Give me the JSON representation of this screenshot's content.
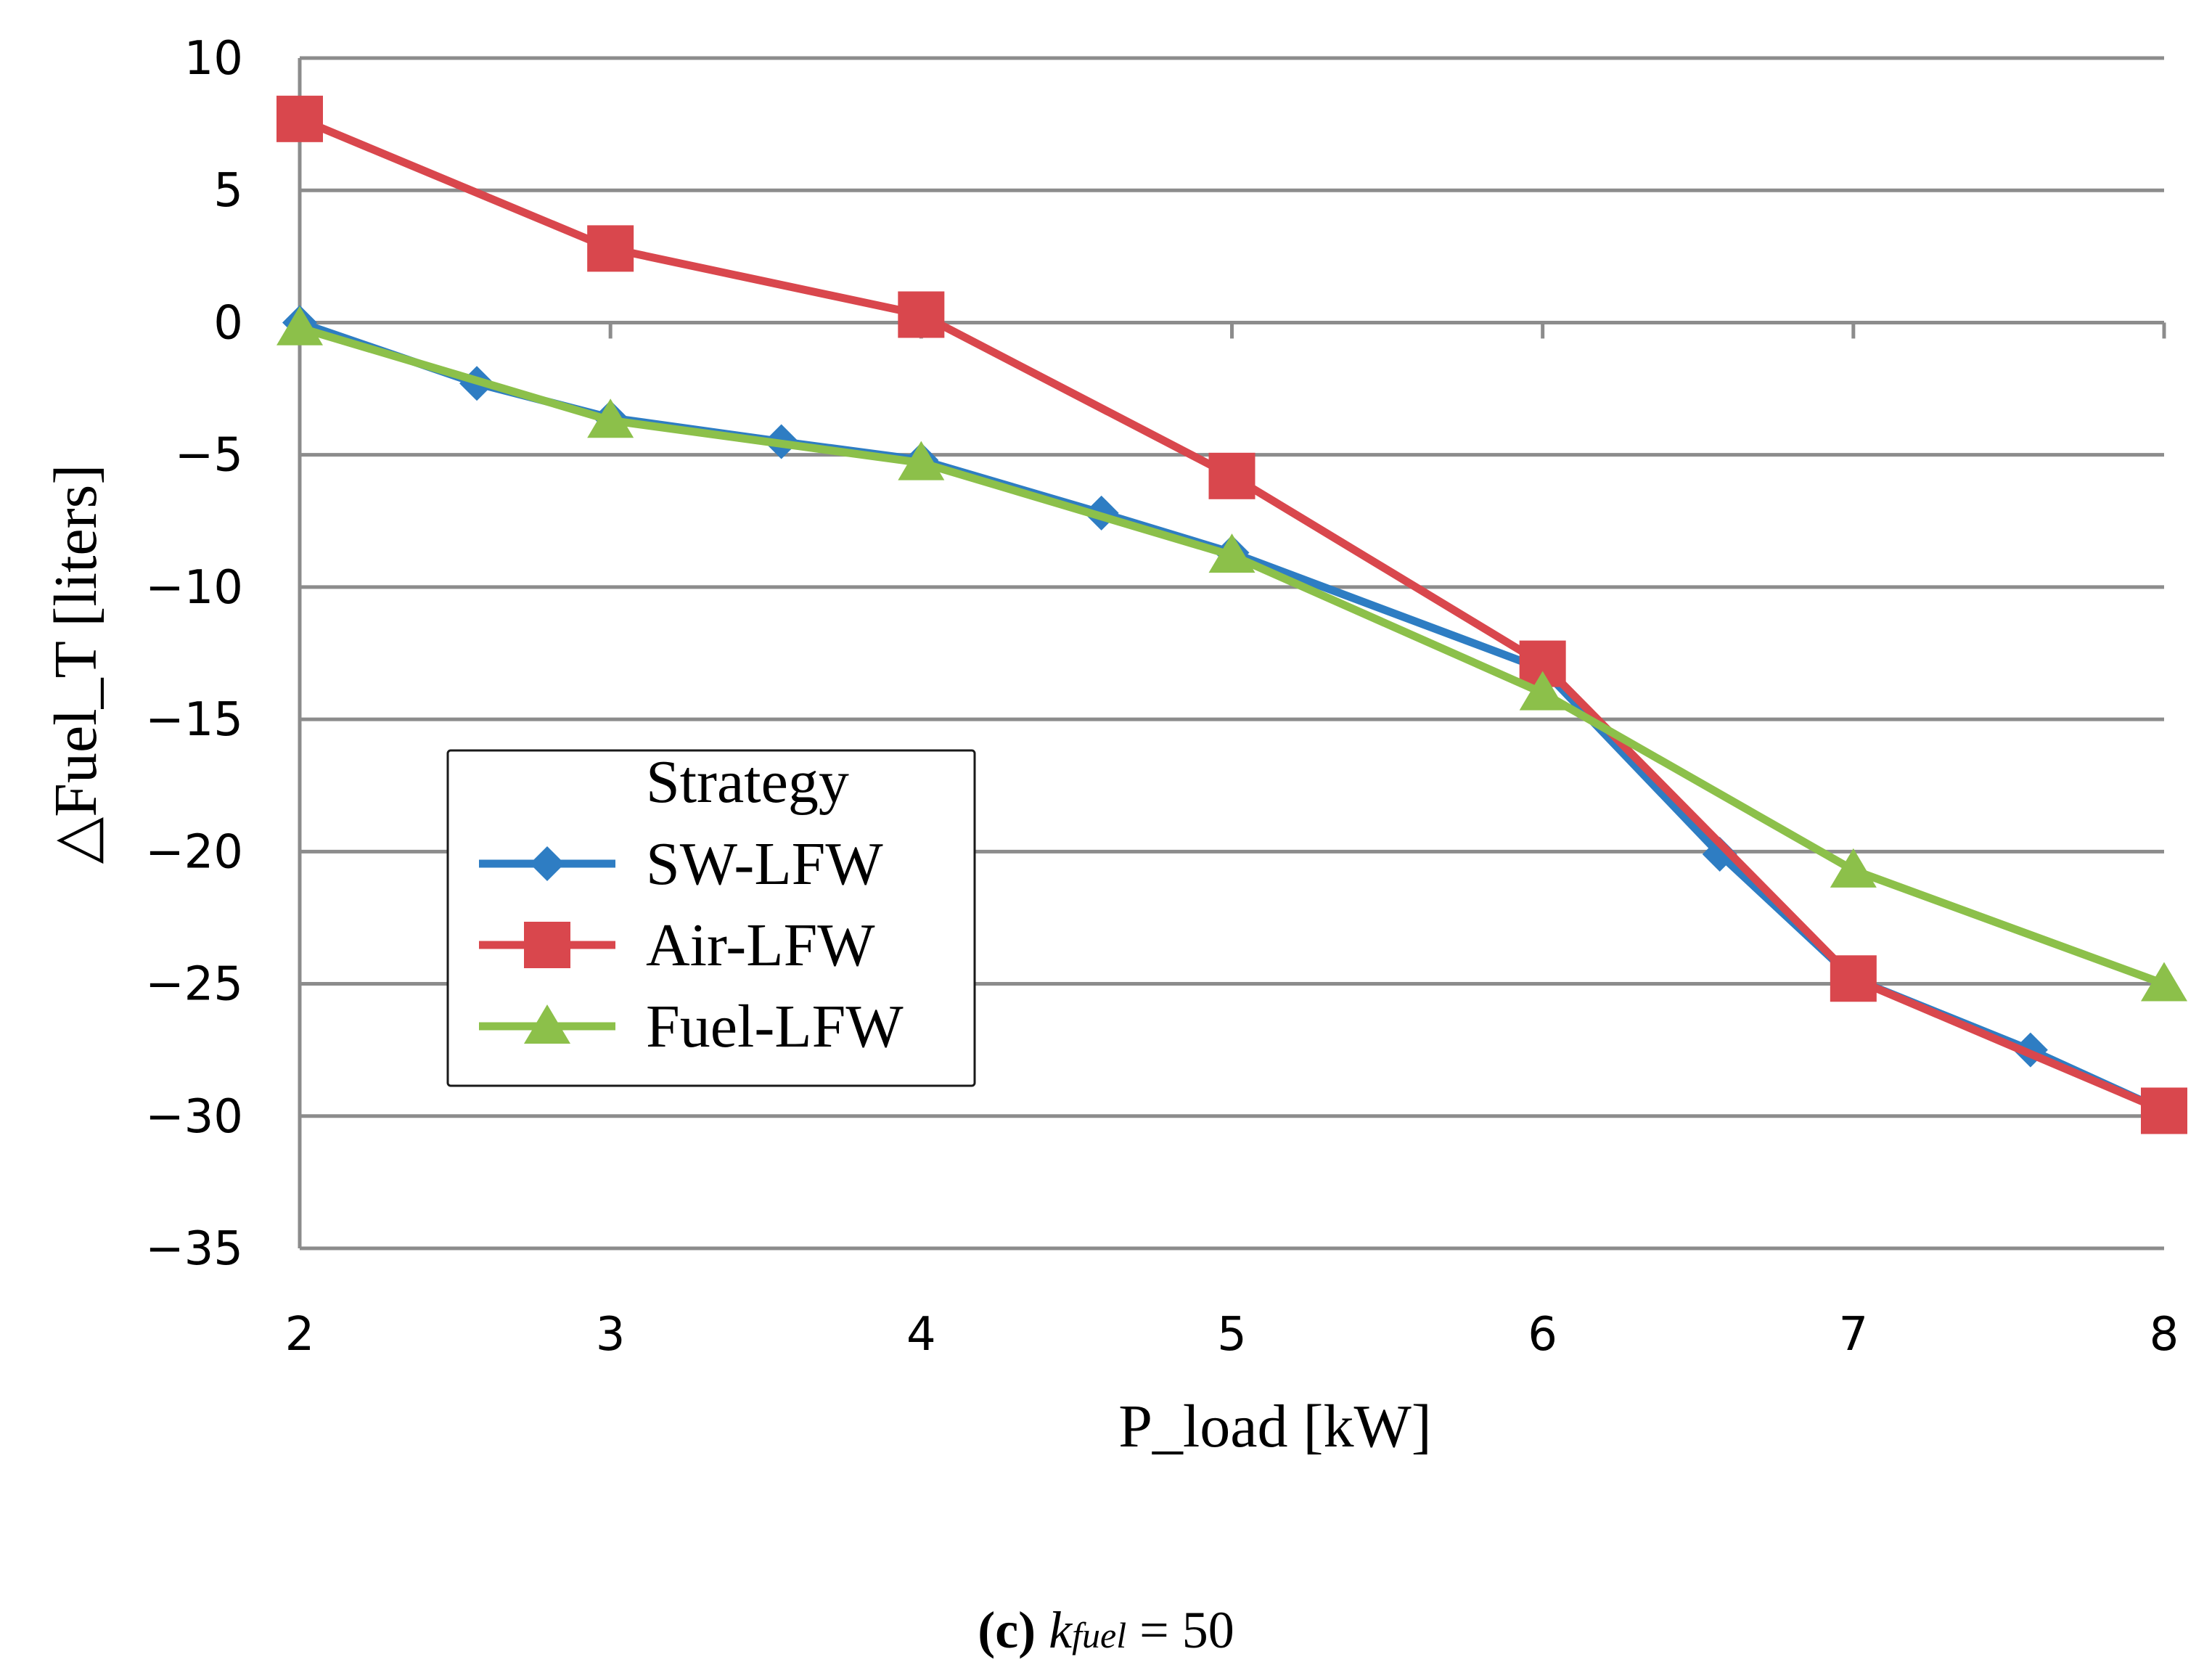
{
  "chart_data": {
    "type": "line",
    "title": "",
    "xlabel": "P_load [kW]",
    "ylabel": "△Fuel_T [liters]",
    "xlim": [
      2,
      8
    ],
    "ylim": [
      -35,
      10
    ],
    "xticks": [
      "2",
      "3",
      "4",
      "5",
      "6",
      "7",
      "8"
    ],
    "yticks": [
      "10",
      "5",
      "0",
      "−5",
      "−10",
      "−15",
      "−20",
      "−25",
      "−30",
      "−35"
    ],
    "grid": "horizontal",
    "legend": {
      "title": "Strategy",
      "placement": "lower-left"
    },
    "series": [
      {
        "name": "SW-LFW",
        "color": "#2e7dc3",
        "marker": "diamond",
        "points": [
          [
            2,
            0
          ],
          [
            2.57,
            -2.3
          ],
          [
            3,
            -3.6
          ],
          [
            3.55,
            -4.5
          ],
          [
            4,
            -5.2
          ],
          [
            4.58,
            -7.2
          ],
          [
            5,
            -8.7
          ],
          [
            6,
            -13.1
          ],
          [
            6.57,
            -20.1
          ],
          [
            7,
            -24.8
          ],
          [
            7.57,
            -27.5
          ],
          [
            8,
            -29.8
          ]
        ]
      },
      {
        "name": "Air-LFW",
        "color": "#d9474d",
        "marker": "square",
        "points": [
          [
            2,
            7.7
          ],
          [
            3,
            2.8
          ],
          [
            4,
            0.3
          ],
          [
            5,
            -5.8
          ],
          [
            6,
            -12.9
          ],
          [
            7,
            -24.8
          ],
          [
            8,
            -29.8
          ]
        ]
      },
      {
        "name": "Fuel-LFW",
        "color": "#8cc04a",
        "marker": "triangle",
        "points": [
          [
            2,
            -0.2
          ],
          [
            3,
            -3.7
          ],
          [
            4,
            -5.3
          ],
          [
            5,
            -8.8
          ],
          [
            6,
            -14.0
          ],
          [
            7,
            -20.7
          ],
          [
            8,
            -25.0
          ]
        ]
      }
    ]
  },
  "caption": {
    "label": "(c)",
    "k": "k",
    "sub": "fuel",
    "rest": " = 50"
  }
}
